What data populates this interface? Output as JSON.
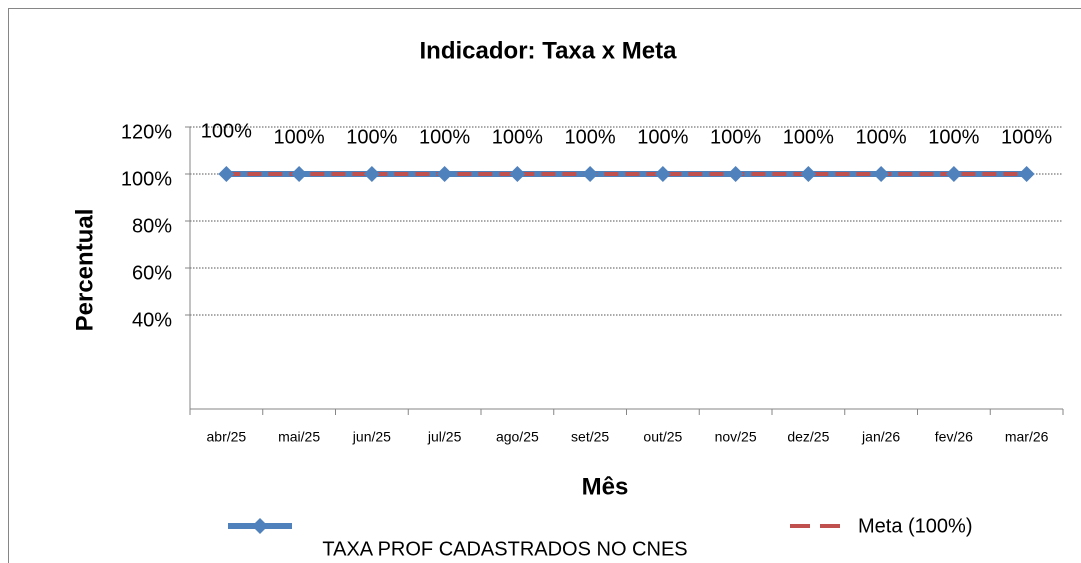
{
  "chart_data": {
    "type": "line",
    "title": "Indicador: Taxa x Meta",
    "x_label": "Mês",
    "y_label": "Percentual",
    "categories": [
      "abr/25",
      "mai/25",
      "jun/25",
      "jul/25",
      "ago/25",
      "set/25",
      "out/25",
      "nov/25",
      "dez/25",
      "jan/26",
      "fev/26",
      "mar/26"
    ],
    "series": [
      {
        "name": "TAXA PROF CADASTRADOS NO CNES",
        "color": "#4f81bd",
        "marker": "diamond",
        "values": [
          100,
          100,
          100,
          100,
          100,
          100,
          100,
          100,
          100,
          100,
          100,
          100
        ],
        "value_labels": [
          "100%",
          "100%",
          "100%",
          "100%",
          "100%",
          "100%",
          "100%",
          "100%",
          "100%",
          "100%",
          "100%",
          "100%"
        ]
      },
      {
        "name": "Meta (100%)",
        "color": "#c0504d",
        "dashed": true,
        "values": [
          100,
          100,
          100,
          100,
          100,
          100,
          100,
          100,
          100,
          100,
          100,
          100
        ]
      }
    ],
    "ylim": [
      0,
      120
    ],
    "yticks": [
      {
        "value": 40,
        "label": "40%"
      },
      {
        "value": 60,
        "label": "60%"
      },
      {
        "value": 80,
        "label": "80%"
      },
      {
        "value": 100,
        "label": "100%"
      },
      {
        "value": 120,
        "label": "120%"
      }
    ],
    "grid": true
  }
}
